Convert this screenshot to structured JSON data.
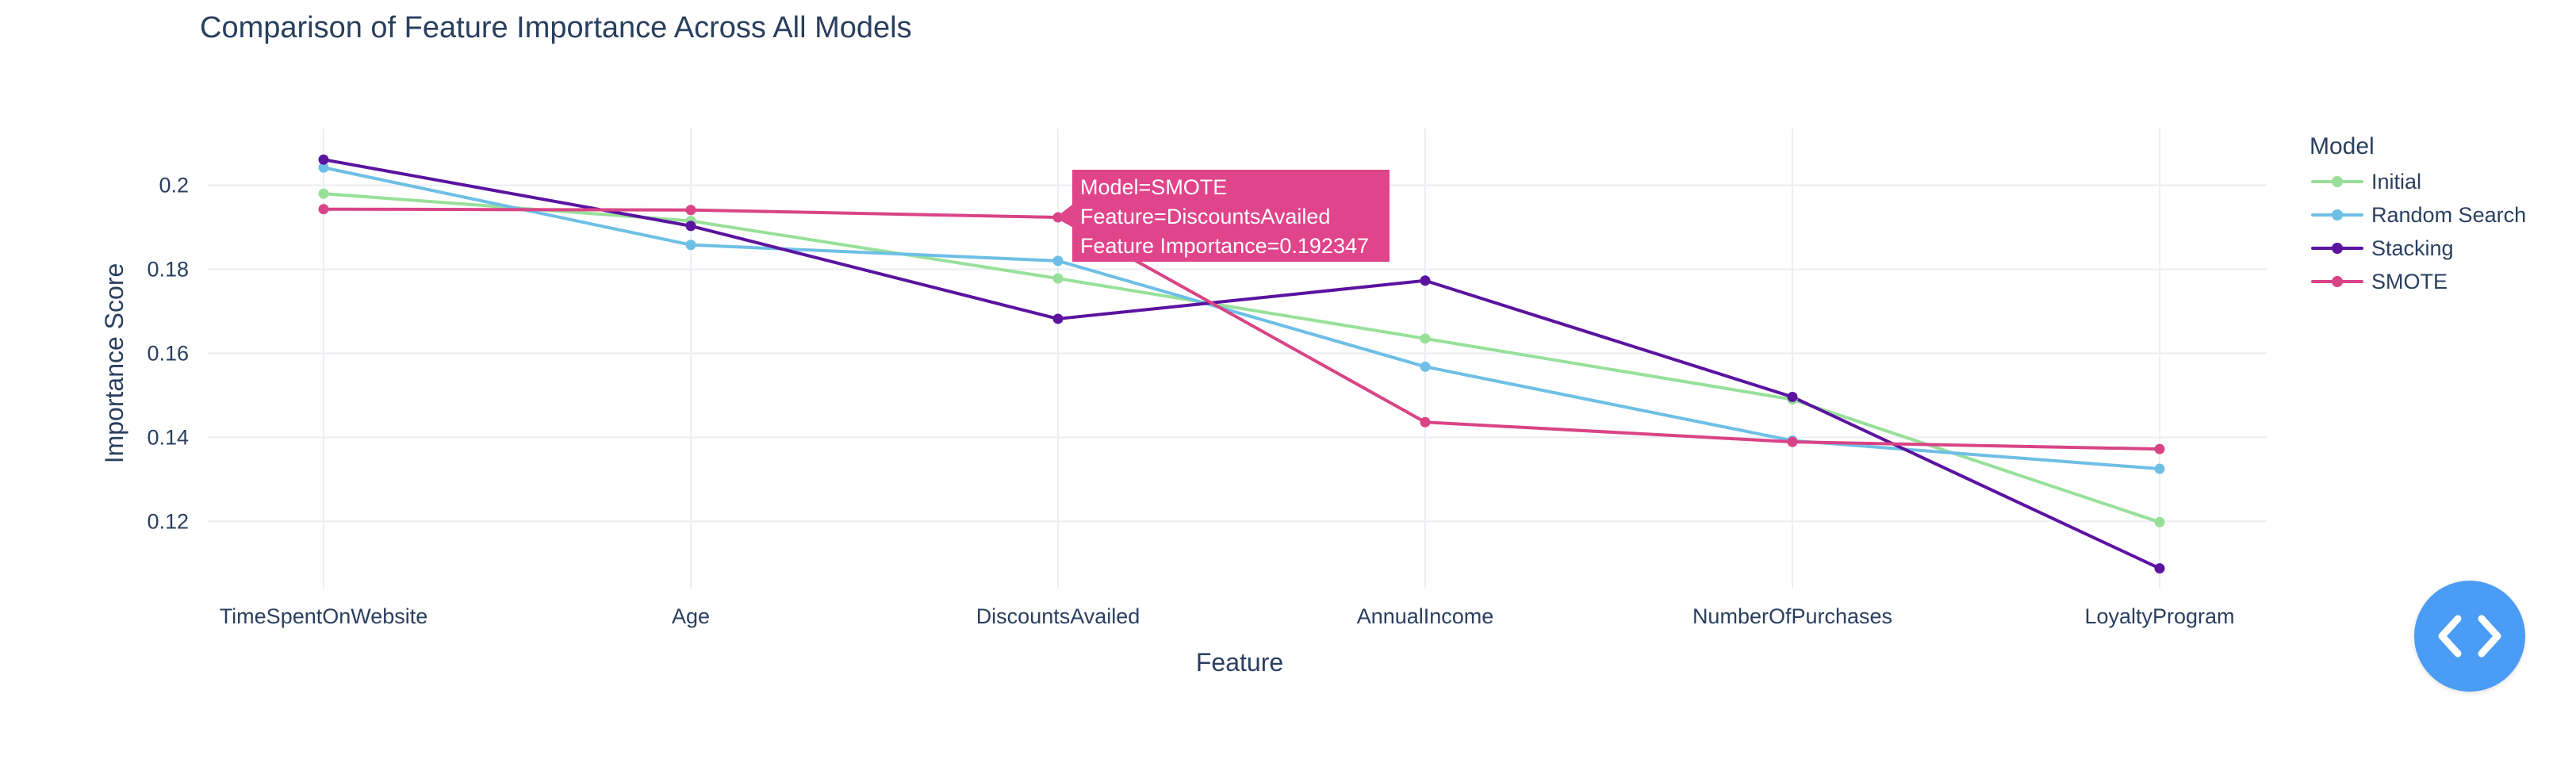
{
  "chart_data": {
    "type": "line",
    "title": "Comparison of Feature Importance Across All Models",
    "xlabel": "Feature",
    "ylabel": "Importance Score",
    "categories": [
      "TimeSpentOnWebsite",
      "Age",
      "DiscountsAvailed",
      "AnnualIncome",
      "NumberOfPurchases",
      "LoyaltyProgram"
    ],
    "yticks": [
      0.12,
      0.14,
      0.16,
      0.18,
      0.2
    ],
    "ytick_labels": [
      "0.12",
      "0.14",
      "0.16",
      "0.18",
      "0.2"
    ],
    "ylim": [
      0.104,
      0.2135
    ],
    "grid": true,
    "legend_title": "Model",
    "legend_position": "right",
    "series": [
      {
        "name": "Initial",
        "color": "#98e09a",
        "values": [
          0.198,
          0.1915,
          0.1778,
          0.1635,
          0.149,
          0.1198
        ]
      },
      {
        "name": "Random Search",
        "color": "#6ebfe5",
        "values": [
          0.2042,
          0.1858,
          0.182,
          0.1568,
          0.1392,
          0.1325
        ]
      },
      {
        "name": "Stacking",
        "color": "#5b13a0",
        "values": [
          0.2061,
          0.1903,
          0.1682,
          0.1773,
          0.1496,
          0.1088
        ]
      },
      {
        "name": "SMOTE",
        "color": "#d94486",
        "values": [
          0.1943,
          0.1941,
          0.192347,
          0.1436,
          0.1389,
          0.1372
        ]
      }
    ],
    "tooltip": {
      "lines": [
        "Model=SMOTE",
        "Feature=DiscountsAvailed",
        "Feature Importance=0.192347"
      ]
    }
  },
  "ui": {
    "code_button_icon": "code-icon"
  }
}
